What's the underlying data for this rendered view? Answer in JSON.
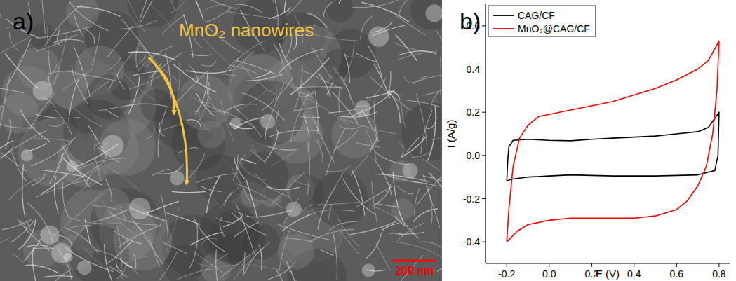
{
  "image_panel": {
    "label": "a)",
    "annotation": "MnO₂ nanowires",
    "scale_bar": "200 nm"
  },
  "chart_data": {
    "type": "line",
    "label": "b)",
    "x_label": "E (V)",
    "y_label": "I (A/g)",
    "xlim": [
      -0.3,
      0.85
    ],
    "ylim": [
      -0.5,
      0.7
    ],
    "xticks": [
      -0.2,
      {
        "value": 0,
        "label": "0.0"
      },
      0.2,
      0.4,
      0.6,
      0.8
    ],
    "yticks": [
      -0.4,
      -0.2,
      {
        "value": 0,
        "label": "0.0"
      },
      0.2,
      0.4,
      0.6
    ],
    "legend": "upper left",
    "series": [
      {
        "name": "CAG/CF",
        "color": "#000000",
        "x": [
          -0.2,
          -0.195,
          -0.19,
          -0.17,
          -0.1,
          0.0,
          0.1,
          0.2,
          0.3,
          0.4,
          0.5,
          0.6,
          0.7,
          0.75,
          0.8,
          0.795,
          0.78,
          0.7,
          0.5,
          0.3,
          0.1,
          0.0,
          -0.1,
          -0.18,
          -0.2
        ],
        "values": [
          -0.12,
          -0.02,
          0.04,
          0.07,
          0.075,
          0.07,
          0.068,
          0.075,
          0.08,
          0.085,
          0.09,
          0.1,
          0.11,
          0.13,
          0.2,
          0.0,
          -0.07,
          -0.09,
          -0.095,
          -0.095,
          -0.09,
          -0.095,
          -0.1,
          -0.11,
          -0.12
        ]
      },
      {
        "name": "MnO₂@CAG/CF",
        "color": "#ff0000",
        "x": [
          -0.2,
          -0.19,
          -0.17,
          -0.14,
          -0.1,
          -0.05,
          0.0,
          0.1,
          0.2,
          0.3,
          0.4,
          0.5,
          0.6,
          0.7,
          0.75,
          0.8,
          0.79,
          0.77,
          0.74,
          0.7,
          0.65,
          0.6,
          0.5,
          0.4,
          0.3,
          0.2,
          0.1,
          0.0,
          -0.1,
          -0.15,
          -0.2
        ],
        "values": [
          -0.4,
          -0.25,
          -0.05,
          0.08,
          0.14,
          0.18,
          0.19,
          0.21,
          0.23,
          0.25,
          0.28,
          0.31,
          0.35,
          0.4,
          0.44,
          0.53,
          0.3,
          0.1,
          -0.05,
          -0.14,
          -0.21,
          -0.25,
          -0.28,
          -0.29,
          -0.29,
          -0.29,
          -0.29,
          -0.3,
          -0.32,
          -0.35,
          -0.4
        ]
      }
    ]
  }
}
